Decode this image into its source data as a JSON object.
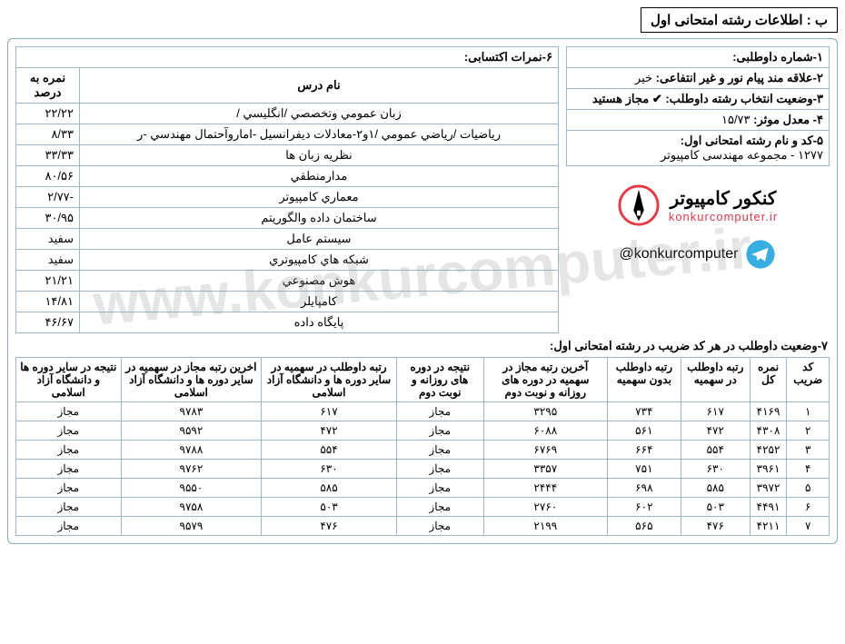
{
  "section_title": "ب : اطلاعات رشته امتحانی اول",
  "info": {
    "row1_label": "۱-شماره داوطلبی:",
    "row2_label": "۲-علاقه مند پیام نور و غیر انتفاعی:",
    "row2_value": "خیر",
    "row3_label": "۳-وضعیت انتخاب رشته داوطلب:",
    "row3_value": "✔ مجاز هستید",
    "row4_label": "۴- معدل موثر:",
    "row4_value": "۱۵/۷۳",
    "row5_label": "۵-کد و نام رشته امتحانی اول:",
    "row5_value": "۱۲۷۷ - مجموعه مهندسی کامپیوتر"
  },
  "logo": {
    "title": "کنکور کامپیوتر",
    "subtitle": "konkurcomputer.ir",
    "telegram": "@konkurcomputer"
  },
  "grades": {
    "caption": "۶-نمرات اکتسابی:",
    "headers": {
      "name": "نام درس",
      "pct": "نمره به درصد"
    },
    "rows": [
      {
        "name": "زبان عمومي وتخصصي /انگليسي /",
        "pct": "۲۲/۲۲"
      },
      {
        "name": "رياضيات /رياضي عمومي /۱و۲-معادلات ديفرانسيل -اماروآحتمال مهندسي -ر",
        "pct": "۸/۳۳"
      },
      {
        "name": "نظريه زبان ها",
        "pct": "۳۳/۳۳"
      },
      {
        "name": "مدارمنطقي",
        "pct": "۸۰/۵۶"
      },
      {
        "name": "معماري كامپيوتر",
        "pct": "-۲/۷۷"
      },
      {
        "name": "ساختمان داده والگوريتم",
        "pct": "۳۰/۹۵"
      },
      {
        "name": "سيستم عامل",
        "pct": "سفید"
      },
      {
        "name": "شبكه هاي كامپيوتري",
        "pct": "سفید"
      },
      {
        "name": "هوش مصنوعي",
        "pct": "۲۱/۲۱"
      },
      {
        "name": "كامپايلر",
        "pct": "۱۴/۸۱"
      },
      {
        "name": "پايگاه داده",
        "pct": "۴۶/۶۷"
      }
    ]
  },
  "rank": {
    "title": "۷-وضعیت داوطلب در هر کد ضریب در رشته امتحانی اول:",
    "headers": {
      "h1": "کد ضریب",
      "h2": "نمره کل",
      "h3": "رتبه داوطلب در سهمیه",
      "h4": "رتبه داوطلب بدون سهمیه",
      "h5": "آخرین رتبه مجاز در سهمیه در دوره های روزانه و نوبت دوم",
      "h6": "نتیجه در دوره های روزانه و نوبت دوم",
      "h7": "رتبه داوطلب در سهمیه در سایر دوره ها و دانشگاه آزاد اسلامی",
      "h8": "اخرین رتبه مجاز در سهمیه در سایر دوره ها و دانشگاه آزاد اسلامی",
      "h9": "نتیجه در سایر دوره ها و دانشگاه آزاد اسلامی"
    },
    "rows": [
      {
        "c1": "۱",
        "c2": "۴۱۶۹",
        "c3": "۶۱۷",
        "c4": "۷۳۴",
        "c5": "۳۲۹۵",
        "c6": "مجاز",
        "c7": "۶۱۷",
        "c8": "۹۷۸۳",
        "c9": "مجاز"
      },
      {
        "c1": "۲",
        "c2": "۴۳۰۸",
        "c3": "۴۷۲",
        "c4": "۵۶۱",
        "c5": "۶۰۸۸",
        "c6": "مجاز",
        "c7": "۴۷۲",
        "c8": "۹۵۹۲",
        "c9": "مجاز"
      },
      {
        "c1": "۳",
        "c2": "۴۲۵۲",
        "c3": "۵۵۴",
        "c4": "۶۶۴",
        "c5": "۶۷۶۹",
        "c6": "مجاز",
        "c7": "۵۵۴",
        "c8": "۹۷۸۸",
        "c9": "مجاز"
      },
      {
        "c1": "۴",
        "c2": "۳۹۶۱",
        "c3": "۶۳۰",
        "c4": "۷۵۱",
        "c5": "۳۳۵۷",
        "c6": "مجاز",
        "c7": "۶۳۰",
        "c8": "۹۷۶۲",
        "c9": "مجاز"
      },
      {
        "c1": "۵",
        "c2": "۳۹۷۲",
        "c3": "۵۸۵",
        "c4": "۶۹۸",
        "c5": "۲۴۴۴",
        "c6": "مجاز",
        "c7": "۵۸۵",
        "c8": "۹۵۵۰",
        "c9": "مجاز"
      },
      {
        "c1": "۶",
        "c2": "۴۴۹۱",
        "c3": "۵۰۳",
        "c4": "۶۰۲",
        "c5": "۲۷۶۰",
        "c6": "مجاز",
        "c7": "۵۰۳",
        "c8": "۹۷۵۸",
        "c9": "مجاز"
      },
      {
        "c1": "۷",
        "c2": "۴۲۱۱",
        "c3": "۴۷۶",
        "c4": "۵۶۵",
        "c5": "۲۱۹۹",
        "c6": "مجاز",
        "c7": "۴۷۶",
        "c8": "۹۵۷۹",
        "c9": "مجاز"
      }
    ]
  }
}
